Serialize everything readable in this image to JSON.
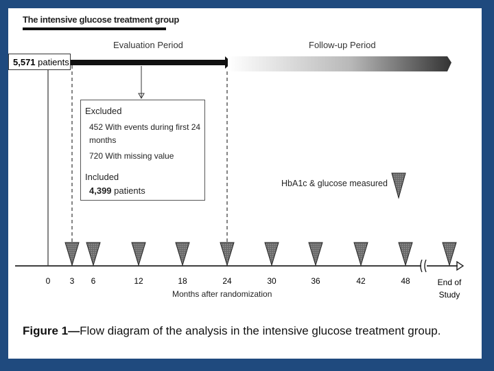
{
  "title": "The intensive glucose treatment group",
  "start_box": {
    "count": "5,571",
    "label": "patients"
  },
  "evaluation_period": "Evaluation Period",
  "followup_period": "Follow-up Period",
  "excluded_box": {
    "excluded_heading": "Excluded",
    "line1": "452 With events during first 24",
    "line1b": "months",
    "line2": "720 With missing value",
    "included_heading": "Included",
    "included_count": "4,399",
    "included_label": "patients"
  },
  "legend_label": "HbA1c & glucose measured",
  "ticks": [
    {
      "label": "0"
    },
    {
      "label": "3"
    },
    {
      "label": "6"
    },
    {
      "label": "12"
    },
    {
      "label": "18"
    },
    {
      "label": "24"
    },
    {
      "label": "30"
    },
    {
      "label": "36"
    },
    {
      "label": "42"
    },
    {
      "label": "48"
    }
  ],
  "end_tick": {
    "line1": "End of",
    "line2": "Study"
  },
  "axis_label": "Months after randomization",
  "caption": {
    "prefix": "Figure 1",
    "text": "Flow diagram of the analysis in the intensive glucose treatment group."
  },
  "colors": {
    "background": "#1f4a7e",
    "marker": "#4a4a4a"
  }
}
